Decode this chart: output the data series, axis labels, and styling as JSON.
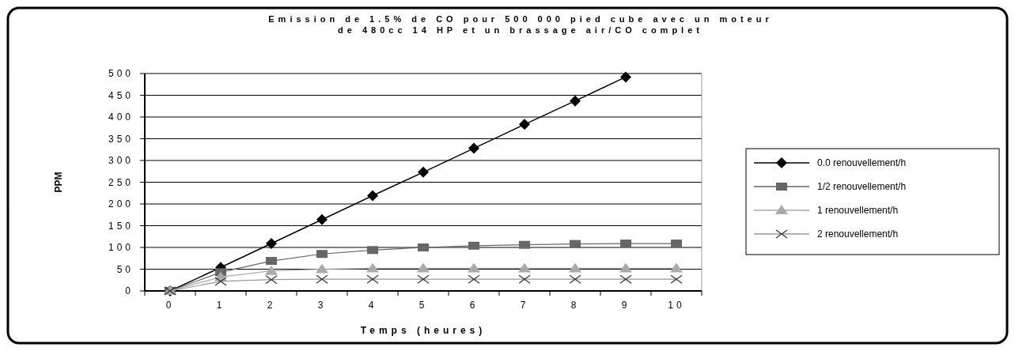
{
  "chart_data": {
    "type": "line",
    "title": "Emission de 1.5% de CO pour 500 000 pied cube avec un moteur de 480cc 14 HP et un brassage air/CO complet",
    "xlabel": "Temps (heures)",
    "ylabel": "PPM",
    "categories": [
      "0",
      "1",
      "2",
      "3",
      "4",
      "5",
      "6",
      "7",
      "8",
      "9",
      "10"
    ],
    "ylim": [
      0,
      500
    ],
    "yticks": [
      0,
      50,
      100,
      150,
      200,
      250,
      300,
      350,
      400,
      450,
      500
    ],
    "grid": "y",
    "legend": "right",
    "series": [
      {
        "name": "0.0 renouvellement/h",
        "color": "#000000",
        "marker": "diamond",
        "values": [
          0,
          54,
          109,
          164,
          219,
          273,
          328,
          383,
          437,
          492,
          null
        ]
      },
      {
        "name": "1/2 renouvellement/h",
        "color": "#666666",
        "marker": "square",
        "values": [
          0,
          43,
          69,
          85,
          94,
          100,
          104,
          106,
          108,
          109,
          109
        ]
      },
      {
        "name": "1 renouvellement/h",
        "color": "#aaaaaa",
        "marker": "triangle",
        "values": [
          0,
          32,
          46,
          50,
          52,
          52,
          52,
          52,
          52,
          52,
          52
        ]
      },
      {
        "name": "2 renouvellement/h",
        "color": "#999999",
        "marker": "cross",
        "values": [
          0,
          22,
          26,
          27,
          27,
          27,
          27,
          27,
          27,
          27,
          27
        ]
      }
    ]
  }
}
